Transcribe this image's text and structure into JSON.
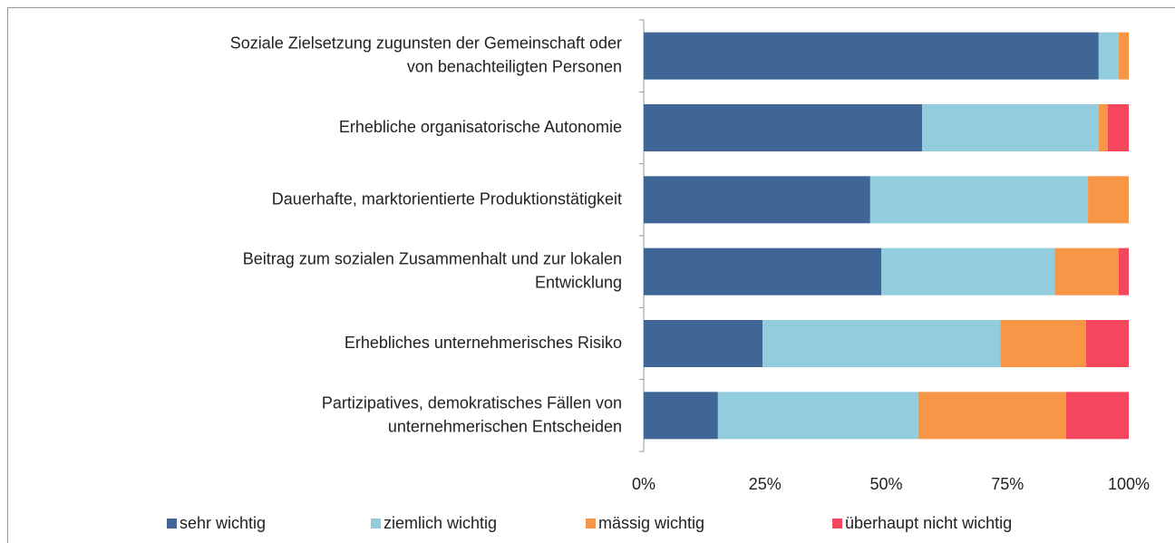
{
  "chart_data": {
    "type": "stacked_barh",
    "categories": [
      "Soziale Zielsetzung zugunsten der Gemeinschaft oder\nvon benachteiligten Personen",
      "Erhebliche organisatorische Autonomie",
      "Dauerhafte, marktorientierte Produktionstätigkeit",
      "Beitrag zum sozialen Zusammenhalt und zur lokalen\nEntwicklung",
      "Erhebliches unternehmerisches Risiko",
      "Partizipatives, demokratisches Fällen von\nunternehmerischen Entscheiden"
    ],
    "series": [
      {
        "name": "sehr wichtig",
        "color": "#3f6695",
        "values": [
          93.8,
          57.4,
          46.7,
          49,
          24.5,
          15.3
        ]
      },
      {
        "name": "ziemlich wichtig",
        "color": "#93cddd",
        "values": [
          4.1,
          36.4,
          44.9,
          35.7,
          49,
          41.3
        ]
      },
      {
        "name": "mässig wichtig",
        "color": "#f79646",
        "values": [
          2.1,
          1.9,
          8.4,
          13.2,
          17.7,
          30.5
        ]
      },
      {
        "name": "überhaupt nicht wichtig",
        "color": "#f4475e",
        "values": [
          0,
          4.3,
          0,
          2.1,
          8.8,
          12.9
        ]
      }
    ],
    "xlim": [
      0,
      100
    ],
    "xticks": [
      {
        "value": 0,
        "label": "0%"
      },
      {
        "value": 25,
        "label": "25%"
      },
      {
        "value": 50,
        "label": "50%"
      },
      {
        "value": 75,
        "label": "75%"
      },
      {
        "value": 100,
        "label": "100%"
      }
    ],
    "legend": "bottom"
  }
}
